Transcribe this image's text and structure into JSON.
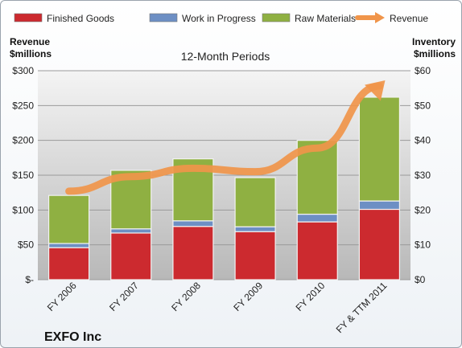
{
  "chart_data": {
    "type": "bar",
    "subtype": "stacked-bar-with-line",
    "title": "12-Month Periods",
    "company": "EXFO Inc",
    "categories": [
      "FY 2006",
      "FY 2007",
      "FY 2008",
      "FY 2009",
      "FY 2010",
      "FY & TTM 2011"
    ],
    "series": [
      {
        "name": "Finished Goods",
        "axis": "right",
        "color": "#cc2a2f",
        "values": [
          9.2,
          13.4,
          15.3,
          13.8,
          16.6,
          20.2
        ]
      },
      {
        "name": "Work in Progress",
        "axis": "right",
        "color": "#6d8fc4",
        "values": [
          1.2,
          1.2,
          1.6,
          1.4,
          2.2,
          2.4
        ]
      },
      {
        "name": "Raw Materials",
        "axis": "right",
        "color": "#8fb042",
        "values": [
          13.8,
          16.8,
          17.8,
          14.1,
          21.2,
          29.8
        ]
      },
      {
        "name": "Revenue",
        "axis": "left",
        "type": "line",
        "color": "#f0954a",
        "values": [
          127,
          148,
          160,
          155,
          189,
          278
        ]
      }
    ],
    "left_axis": {
      "label": "Revenue $millions",
      "label_lines": [
        "Revenue",
        "$millions"
      ],
      "ylim": [
        0,
        300
      ],
      "ticks": [
        "$-",
        "$50",
        "$100",
        "$150",
        "$200",
        "$250",
        "$300"
      ]
    },
    "right_axis": {
      "label": "Inventory $millions",
      "label_lines": [
        "Inventory",
        "$millions"
      ],
      "ylim": [
        0,
        60
      ],
      "ticks": [
        "$0",
        "$10",
        "$20",
        "$30",
        "$40",
        "$50",
        "$60"
      ]
    },
    "legend_position": "top",
    "grid": true
  }
}
